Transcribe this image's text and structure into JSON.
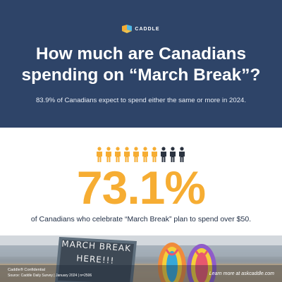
{
  "brand": {
    "name": "CADDLE",
    "logo_icon": "caddle-logo-icon",
    "colors": {
      "navy": "#2e4468",
      "orange": "#f6ad33",
      "dark_figure": "#2b3340"
    }
  },
  "header": {
    "title": "How much are Canadians spending on “March Break”?",
    "subtitle": "83.9% of Canadians expect to spend either the same or more in 2024."
  },
  "stat": {
    "value": "73.1%",
    "caption": "of Canadians who celebrate “March Break” plan to spend over $50.",
    "icon": "people-icon",
    "highlighted_people": 7,
    "total_people": 10
  },
  "photo": {
    "sign_line1": "MARCH BREAK",
    "sign_line2": "HERE!!!",
    "icon": "beach-sandals-icon"
  },
  "footer": {
    "confidential": "Caddle® Confidential",
    "source": "Source: Caddle Daily Survey | January 2024 | n=2506",
    "learn_more": "Learn more at askcaddle.com"
  }
}
